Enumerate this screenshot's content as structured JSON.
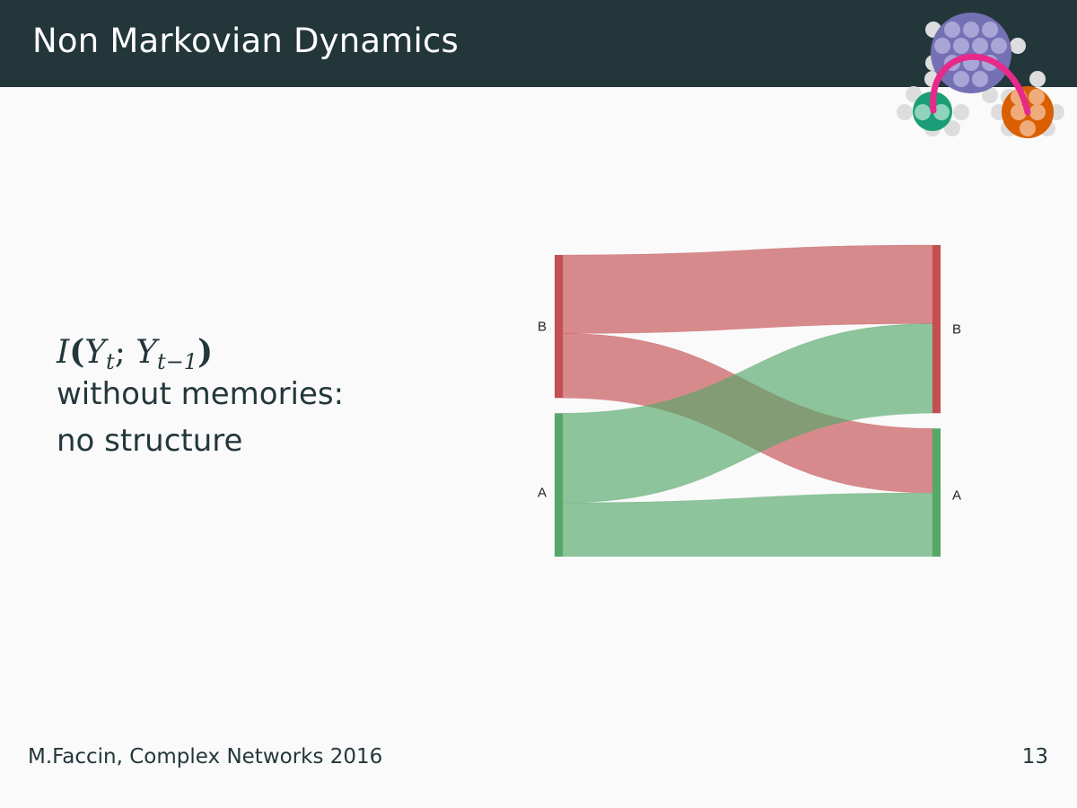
{
  "header": {
    "title": "Non Markovian Dynamics"
  },
  "content": {
    "formula": {
      "func": "I",
      "var1": "Y",
      "sub1": "t",
      "var2": "Y",
      "sub2": "t−1"
    },
    "line1": "without memories:",
    "line2": "no structure"
  },
  "chart_data": {
    "type": "sankey",
    "left_nodes": [
      "B",
      "A"
    ],
    "right_nodes": [
      "B",
      "A"
    ],
    "flows": [
      {
        "from": "B",
        "to": "B",
        "value": 50
      },
      {
        "from": "B",
        "to": "A",
        "value": 41
      },
      {
        "from": "A",
        "to": "B",
        "value": 57
      },
      {
        "from": "A",
        "to": "A",
        "value": 44
      }
    ],
    "colors": {
      "B": "#c44e52",
      "A": "#55a868"
    }
  },
  "footer": {
    "author": "M.Faccin, Complex Networks 2016",
    "page": "13"
  }
}
